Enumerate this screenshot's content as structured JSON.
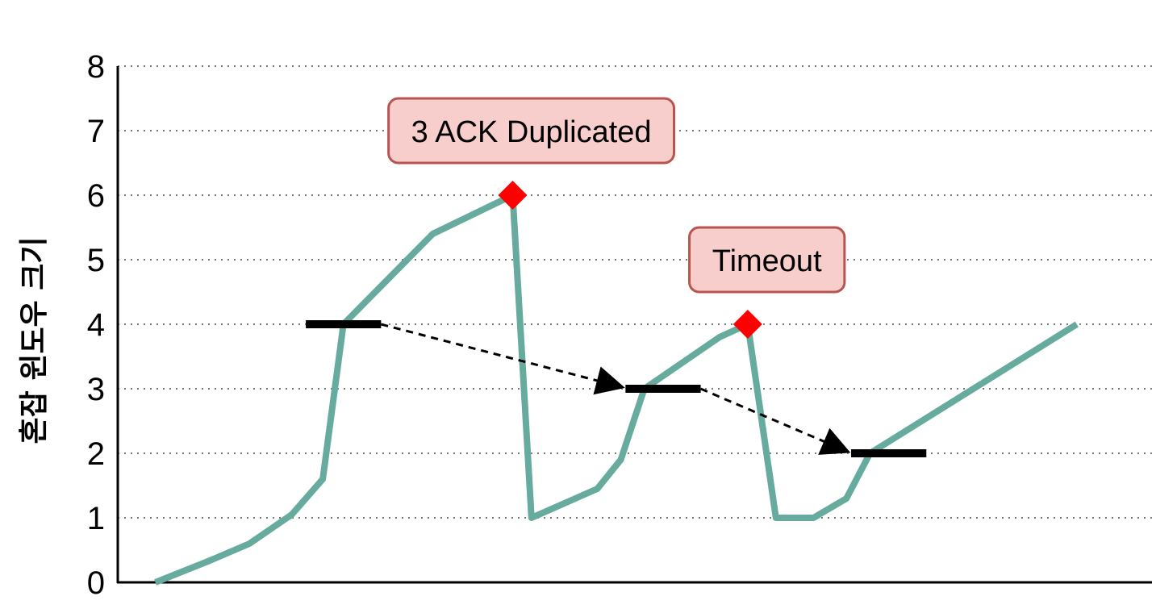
{
  "chart_data": {
    "type": "line",
    "title": "",
    "xlabel": "",
    "ylabel": "혼잡 윈도우 크기",
    "ylim": [
      0,
      8
    ],
    "yticks": [
      0,
      1,
      2,
      3,
      4,
      5,
      6,
      7,
      8
    ],
    "grid": "horizontal dotted",
    "series": [
      {
        "color": "#67ab9f",
        "points": [
          [
            0.0,
            0.0
          ],
          [
            0.6,
            0.35
          ],
          [
            1.0,
            0.6
          ],
          [
            1.45,
            1.05
          ],
          [
            1.78,
            1.6
          ],
          [
            2.0,
            4.0
          ],
          [
            2.95,
            5.4
          ],
          [
            3.8,
            6.0
          ],
          [
            4.0,
            1.0
          ],
          [
            4.7,
            1.45
          ],
          [
            4.95,
            1.9
          ],
          [
            5.2,
            3.0
          ],
          [
            6.0,
            3.8
          ],
          [
            6.3,
            4.0
          ],
          [
            6.6,
            1.0
          ],
          [
            7.0,
            1.0
          ],
          [
            7.35,
            1.3
          ],
          [
            7.6,
            2.0
          ],
          [
            9.8,
            4.0
          ]
        ]
      }
    ],
    "thresholds": [
      {
        "x_start": 1.6,
        "x_end": 2.4,
        "value": 4
      },
      {
        "x_start": 5.0,
        "x_end": 5.8,
        "value": 3
      },
      {
        "x_start": 7.4,
        "x_end": 8.2,
        "value": 2
      }
    ],
    "threshold_arrows": [
      {
        "from": [
          2.4,
          4
        ],
        "to": [
          5.0,
          3
        ]
      },
      {
        "from": [
          5.8,
          3
        ],
        "to": [
          7.4,
          2
        ]
      }
    ],
    "events": [
      {
        "label": "3 ACK Duplicated",
        "x": 3.8,
        "y": 6,
        "marker": "diamond",
        "color": "#ff0000"
      },
      {
        "label": "Timeout",
        "x": 6.3,
        "y": 4,
        "marker": "diamond",
        "color": "#ff0000"
      }
    ],
    "annotation_style": {
      "fill": "#f8cecc",
      "stroke": "#b85450"
    },
    "x_domain": [
      -0.4,
      10.6
    ]
  }
}
